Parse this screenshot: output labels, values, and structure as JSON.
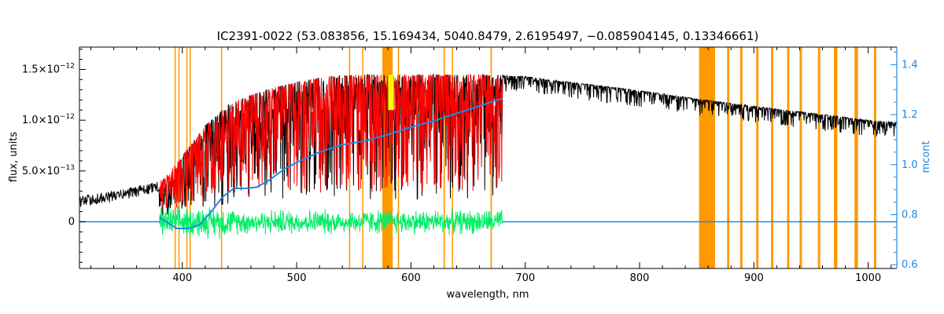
{
  "chart_data": {
    "type": "line",
    "title": "IC2391-0022   (53.083856, 15.169434, 5040.8479, 2.6195497, −0.085904145, 0.13346661)",
    "xlabel": "wavelength, nm",
    "ylabel": "flux, units",
    "ylabel_right": "mcont",
    "xlim": [
      310,
      1025
    ],
    "ylim": [
      -4.6e-13,
      1.72e-12
    ],
    "ylim_right": [
      0.585,
      1.47
    ],
    "x_ticks": [
      400,
      500,
      600,
      700,
      800,
      900,
      1000
    ],
    "x_tick_labels": [
      "400",
      "500",
      "600",
      "700",
      "800",
      "900",
      "1000"
    ],
    "y_ticks": [
      0,
      5e-13,
      1e-12,
      1.5e-12
    ],
    "y_tick_labels": [
      {
        "mant": "0",
        "exp": ""
      },
      {
        "mant": "5.0×10",
        "exp": "−13"
      },
      {
        "mant": "1.0×10",
        "exp": "−12"
      },
      {
        "mant": "1.5×10",
        "exp": "−12"
      }
    ],
    "y2_ticks": [
      0.6,
      0.8,
      1.0,
      1.2,
      1.4
    ],
    "y2_tick_labels": [
      "0.6",
      "0.8",
      "1.0",
      "1.2",
      "1.4"
    ],
    "grid": false,
    "colors": {
      "observed": "#000000",
      "model": "#ff0000",
      "residual": "#00ee66",
      "mcont": "#1e88e5",
      "masked": "#ff9900",
      "highlight": "#ffff00"
    },
    "series": [
      {
        "role": "observed",
        "x": [
          310,
          340,
          370,
          380,
          390,
          400,
          420,
          440,
          460,
          480,
          500,
          520,
          540,
          560,
          580,
          600,
          620,
          640,
          660,
          680,
          700,
          720,
          750,
          780,
          800,
          820,
          850,
          870,
          900,
          920,
          950,
          980,
          1000,
          1025
        ],
        "y": [
          2e-13,
          2.5e-13,
          3.2e-13,
          3.5e-13,
          4e-13,
          6.5e-13,
          9.5e-13,
          1.15e-12,
          1.25e-12,
          1.32e-12,
          1.38e-12,
          1.42e-12,
          1.44e-12,
          1.45e-12,
          1.45e-12,
          1.45e-12,
          1.45e-12,
          1.45e-12,
          1.45e-12,
          1.44e-12,
          1.43e-12,
          1.4e-12,
          1.36e-12,
          1.32e-12,
          1.29e-12,
          1.26e-12,
          1.21e-12,
          1.18e-12,
          1.14e-12,
          1.11e-12,
          1.07e-12,
          1.03e-12,
          1e-12,
          9.8e-13
        ]
      },
      {
        "role": "model",
        "x": [
          380,
          390,
          400,
          420,
          440,
          460,
          480,
          500,
          520,
          540,
          560,
          580,
          600,
          620,
          640,
          660,
          680
        ],
        "y": [
          4e-13,
          5e-13,
          6.5e-13,
          9.5e-13,
          1.15e-12,
          1.25e-12,
          1.32e-12,
          1.38e-12,
          1.42e-12,
          1.44e-12,
          1.45e-12,
          1.45e-12,
          1.45e-12,
          1.45e-12,
          1.45e-12,
          1.45e-12,
          1.44e-12
        ]
      },
      {
        "role": "residual",
        "x": [
          380,
          680
        ],
        "y": [
          0,
          0
        ]
      },
      {
        "role": "mcont",
        "x": [
          310,
          380,
          395,
          405,
          415,
          425,
          435,
          445,
          455,
          465,
          475,
          490,
          505,
          520,
          540,
          560,
          580,
          600,
          620,
          640,
          660,
          670,
          680
        ],
        "y": [
          0.79,
          0.79,
          0.745,
          0.745,
          0.76,
          0.81,
          0.87,
          0.905,
          0.905,
          0.91,
          0.935,
          0.985,
          1.02,
          1.05,
          1.08,
          1.095,
          1.12,
          1.15,
          1.175,
          1.205,
          1.235,
          1.25,
          1.265
        ]
      }
    ],
    "masked_regions": [
      [
        393.2,
        393.8
      ],
      [
        396.6,
        397.2
      ],
      [
        403.5,
        404.5
      ],
      [
        406.3,
        407.3
      ],
      [
        433.8,
        434.8
      ],
      [
        545.8,
        546.8
      ],
      [
        557.3,
        558.3
      ],
      [
        575,
        584
      ],
      [
        588.5,
        589.6
      ],
      [
        628.5,
        629.7
      ],
      [
        635.8,
        636.8
      ],
      [
        669.6,
        670.8
      ],
      [
        852,
        866
      ],
      [
        876.5,
        878.5
      ],
      [
        888,
        890
      ],
      [
        902,
        904
      ],
      [
        915,
        917
      ],
      [
        929,
        931
      ],
      [
        940,
        942
      ],
      [
        956,
        958
      ],
      [
        970,
        973
      ],
      [
        988,
        991
      ],
      [
        1005,
        1007
      ]
    ]
  }
}
